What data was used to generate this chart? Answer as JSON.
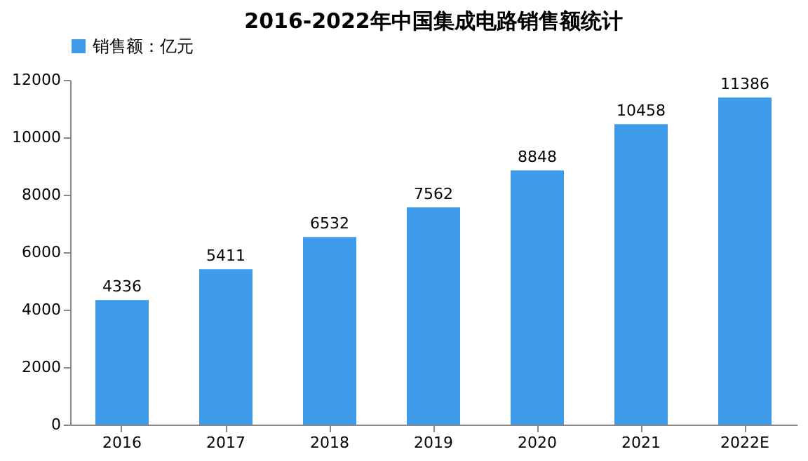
{
  "chart_data": {
    "type": "bar",
    "title": "2016-2022年中国集成电路销售额统计",
    "categories": [
      "2016",
      "2017",
      "2018",
      "2019",
      "2020",
      "2021",
      "2022E"
    ],
    "series": [
      {
        "name": "销售额：亿元",
        "color": "#3d9be9",
        "values": [
          4336,
          5411,
          6532,
          7562,
          8848,
          10458,
          11386
        ]
      }
    ],
    "ylim": [
      0,
      12000
    ],
    "yticks": [
      0,
      2000,
      4000,
      6000,
      8000,
      10000,
      12000
    ],
    "data_labels": true,
    "grid": false,
    "legend": "top"
  }
}
